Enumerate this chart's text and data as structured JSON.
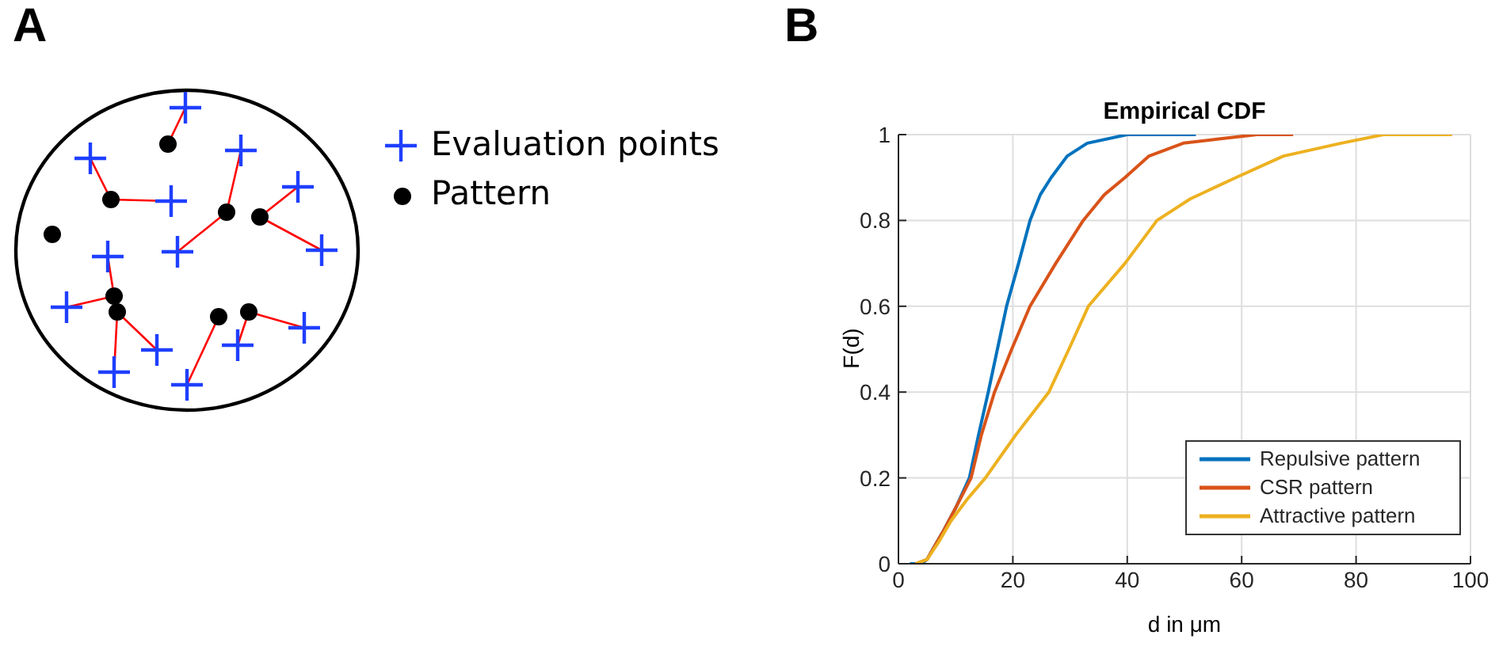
{
  "chart_data": [
    {
      "type": "other",
      "annotations": [
        "A",
        "Evaluation points",
        "Pattern"
      ]
    },
    {
      "type": "line",
      "title": "Empirical CDF",
      "xlabel": "d in μm",
      "ylabel": "F(d)",
      "annotations": [
        "B"
      ],
      "xlim": [
        0,
        100
      ],
      "xticks": [
        0,
        20,
        40,
        60,
        80,
        100
      ],
      "ylim": [
        0,
        1
      ],
      "yticks": [
        0,
        0.2,
        0.4,
        0.6,
        0.8,
        1
      ],
      "grid": true,
      "legend": "bottom right",
      "marker": "none",
      "series": [
        {
          "name": "Repulsive pattern",
          "color": "#0072bd",
          "x": [
            2,
            4,
            5,
            8,
            10,
            12.4,
            14,
            15.7,
            17.3,
            18.9,
            21,
            23,
            24.8,
            26.7,
            29.5,
            33,
            40,
            52
          ],
          "values": [
            0,
            0,
            0.01,
            0.08,
            0.13,
            0.2,
            0.3,
            0.4,
            0.5,
            0.6,
            0.7,
            0.8,
            0.86,
            0.9,
            0.95,
            0.98,
            1,
            1
          ]
        },
        {
          "name": "CSR pattern",
          "color": "#d95319",
          "x": [
            3,
            5,
            8,
            10,
            12.7,
            14.5,
            16.8,
            19.8,
            23,
            27.5,
            32.3,
            36,
            39.6,
            43.8,
            49.8,
            56,
            62.7,
            69
          ],
          "values": [
            0,
            0.01,
            0.08,
            0.13,
            0.2,
            0.3,
            0.4,
            0.5,
            0.6,
            0.7,
            0.8,
            0.86,
            0.9,
            0.95,
            0.98,
            0.99,
            1,
            1
          ]
        },
        {
          "name": "Attractive pattern",
          "color": "#edb120",
          "x": [
            3,
            5,
            7,
            9.2,
            12,
            15.2,
            20.5,
            26.3,
            29.8,
            33.2,
            39.6,
            45.2,
            51,
            59,
            67.3,
            77.4,
            84.8,
            96.8
          ],
          "values": [
            0,
            0.01,
            0.05,
            0.1,
            0.15,
            0.2,
            0.3,
            0.4,
            0.5,
            0.6,
            0.7,
            0.8,
            0.85,
            0.9,
            0.95,
            0.98,
            1,
            1
          ]
        }
      ]
    }
  ]
}
